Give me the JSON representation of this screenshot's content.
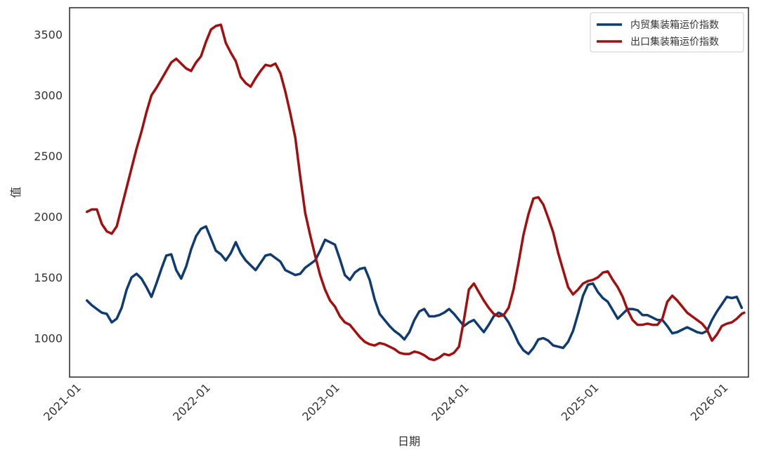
{
  "chart_data": {
    "type": "line",
    "title": "",
    "xlabel": "日期",
    "ylabel": "值",
    "x_ticks": [
      "2021-01",
      "2022-01",
      "2023-01",
      "2024-01",
      "2025-01",
      "2026-01"
    ],
    "y_ticks": [
      "1000",
      "1500",
      "2000",
      "2500",
      "3000",
      "3500"
    ],
    "ylim": [
      680,
      3720
    ],
    "xlim": [
      "2020-12-18",
      "2026-03-18"
    ],
    "legend_position": "top-right",
    "grid": false,
    "series": [
      {
        "name": "内贸集装箱运价指数",
        "color": "#0d3b72",
        "points": [
          [
            "2021-02-05",
            1310
          ],
          [
            "2021-02-19",
            1270
          ],
          [
            "2021-03-05",
            1240
          ],
          [
            "2021-03-19",
            1210
          ],
          [
            "2021-04-02",
            1200
          ],
          [
            "2021-04-16",
            1130
          ],
          [
            "2021-04-30",
            1160
          ],
          [
            "2021-05-14",
            1250
          ],
          [
            "2021-05-28",
            1400
          ],
          [
            "2021-06-11",
            1500
          ],
          [
            "2021-06-25",
            1530
          ],
          [
            "2021-07-09",
            1490
          ],
          [
            "2021-07-23",
            1420
          ],
          [
            "2021-08-06",
            1340
          ],
          [
            "2021-08-20",
            1450
          ],
          [
            "2021-09-03",
            1570
          ],
          [
            "2021-09-17",
            1680
          ],
          [
            "2021-10-01",
            1690
          ],
          [
            "2021-10-15",
            1560
          ],
          [
            "2021-10-29",
            1490
          ],
          [
            "2021-11-12",
            1590
          ],
          [
            "2021-11-26",
            1730
          ],
          [
            "2021-12-10",
            1840
          ],
          [
            "2021-12-24",
            1900
          ],
          [
            "2022-01-07",
            1920
          ],
          [
            "2022-01-21",
            1820
          ],
          [
            "2022-02-04",
            1720
          ],
          [
            "2022-02-18",
            1690
          ],
          [
            "2022-03-04",
            1640
          ],
          [
            "2022-03-18",
            1700
          ],
          [
            "2022-04-01",
            1790
          ],
          [
            "2022-04-15",
            1700
          ],
          [
            "2022-04-29",
            1640
          ],
          [
            "2022-05-13",
            1600
          ],
          [
            "2022-05-27",
            1560
          ],
          [
            "2022-06-10",
            1620
          ],
          [
            "2022-06-24",
            1680
          ],
          [
            "2022-07-08",
            1690
          ],
          [
            "2022-07-22",
            1660
          ],
          [
            "2022-08-05",
            1630
          ],
          [
            "2022-08-19",
            1560
          ],
          [
            "2022-09-02",
            1540
          ],
          [
            "2022-09-16",
            1520
          ],
          [
            "2022-09-30",
            1530
          ],
          [
            "2022-10-14",
            1580
          ],
          [
            "2022-10-28",
            1610
          ],
          [
            "2022-11-11",
            1640
          ],
          [
            "2022-11-25",
            1720
          ],
          [
            "2022-12-09",
            1810
          ],
          [
            "2022-12-23",
            1790
          ],
          [
            "2023-01-06",
            1770
          ],
          [
            "2023-01-20",
            1650
          ],
          [
            "2023-02-03",
            1520
          ],
          [
            "2023-02-17",
            1480
          ],
          [
            "2023-03-03",
            1540
          ],
          [
            "2023-03-17",
            1570
          ],
          [
            "2023-03-31",
            1580
          ],
          [
            "2023-04-14",
            1480
          ],
          [
            "2023-04-28",
            1320
          ],
          [
            "2023-05-12",
            1200
          ],
          [
            "2023-05-26",
            1150
          ],
          [
            "2023-06-09",
            1100
          ],
          [
            "2023-06-23",
            1060
          ],
          [
            "2023-07-07",
            1030
          ],
          [
            "2023-07-21",
            990
          ],
          [
            "2023-08-04",
            1050
          ],
          [
            "2023-08-18",
            1150
          ],
          [
            "2023-09-01",
            1220
          ],
          [
            "2023-09-15",
            1240
          ],
          [
            "2023-09-29",
            1180
          ],
          [
            "2023-10-13",
            1180
          ],
          [
            "2023-10-27",
            1190
          ],
          [
            "2023-11-10",
            1210
          ],
          [
            "2023-11-24",
            1240
          ],
          [
            "2023-12-08",
            1200
          ],
          [
            "2023-12-22",
            1150
          ],
          [
            "2024-01-05",
            1100
          ],
          [
            "2024-01-19",
            1130
          ],
          [
            "2024-02-02",
            1150
          ],
          [
            "2024-02-16",
            1100
          ],
          [
            "2024-03-01",
            1050
          ],
          [
            "2024-03-15",
            1110
          ],
          [
            "2024-03-29",
            1180
          ],
          [
            "2024-04-12",
            1210
          ],
          [
            "2024-04-26",
            1190
          ],
          [
            "2024-05-10",
            1130
          ],
          [
            "2024-05-24",
            1050
          ],
          [
            "2024-06-07",
            960
          ],
          [
            "2024-06-21",
            900
          ],
          [
            "2024-07-05",
            870
          ],
          [
            "2024-07-19",
            920
          ],
          [
            "2024-08-02",
            990
          ],
          [
            "2024-08-16",
            1000
          ],
          [
            "2024-08-30",
            980
          ],
          [
            "2024-09-13",
            940
          ],
          [
            "2024-09-27",
            930
          ],
          [
            "2024-10-11",
            920
          ],
          [
            "2024-10-25",
            970
          ],
          [
            "2024-11-08",
            1060
          ],
          [
            "2024-11-22",
            1200
          ],
          [
            "2024-12-06",
            1350
          ],
          [
            "2024-12-20",
            1440
          ],
          [
            "2025-01-03",
            1450
          ],
          [
            "2025-01-17",
            1380
          ],
          [
            "2025-01-31",
            1330
          ],
          [
            "2025-02-14",
            1300
          ],
          [
            "2025-02-28",
            1230
          ],
          [
            "2025-03-14",
            1160
          ],
          [
            "2025-03-28",
            1200
          ],
          [
            "2025-04-11",
            1240
          ],
          [
            "2025-04-25",
            1240
          ],
          [
            "2025-05-09",
            1230
          ],
          [
            "2025-05-23",
            1190
          ],
          [
            "2025-06-06",
            1190
          ],
          [
            "2025-06-20",
            1170
          ],
          [
            "2025-07-04",
            1150
          ],
          [
            "2025-07-18",
            1150
          ],
          [
            "2025-08-01",
            1100
          ],
          [
            "2025-08-15",
            1040
          ],
          [
            "2025-08-29",
            1050
          ],
          [
            "2025-09-12",
            1070
          ],
          [
            "2025-09-26",
            1090
          ],
          [
            "2025-10-10",
            1070
          ],
          [
            "2025-10-24",
            1050
          ],
          [
            "2025-11-07",
            1040
          ],
          [
            "2025-11-21",
            1060
          ],
          [
            "2025-12-05",
            1150
          ],
          [
            "2025-12-19",
            1220
          ],
          [
            "2026-01-02",
            1280
          ],
          [
            "2026-01-16",
            1340
          ],
          [
            "2026-01-30",
            1330
          ],
          [
            "2026-02-13",
            1340
          ],
          [
            "2026-02-27",
            1250
          ]
        ]
      },
      {
        "name": "出口集装箱运价指数",
        "color": "#a30f0f",
        "points": [
          [
            "2021-02-05",
            2040
          ],
          [
            "2021-02-19",
            2060
          ],
          [
            "2021-03-05",
            2060
          ],
          [
            "2021-03-19",
            1940
          ],
          [
            "2021-04-02",
            1880
          ],
          [
            "2021-04-16",
            1860
          ],
          [
            "2021-04-30",
            1920
          ],
          [
            "2021-05-14",
            2080
          ],
          [
            "2021-05-28",
            2240
          ],
          [
            "2021-06-11",
            2400
          ],
          [
            "2021-06-25",
            2560
          ],
          [
            "2021-07-09",
            2700
          ],
          [
            "2021-07-23",
            2860
          ],
          [
            "2021-08-06",
            3000
          ],
          [
            "2021-08-20",
            3060
          ],
          [
            "2021-09-03",
            3130
          ],
          [
            "2021-09-17",
            3200
          ],
          [
            "2021-10-01",
            3270
          ],
          [
            "2021-10-15",
            3300
          ],
          [
            "2021-10-29",
            3260
          ],
          [
            "2021-11-12",
            3220
          ],
          [
            "2021-11-26",
            3200
          ],
          [
            "2021-12-10",
            3270
          ],
          [
            "2021-12-24",
            3320
          ],
          [
            "2022-01-07",
            3440
          ],
          [
            "2022-01-21",
            3540
          ],
          [
            "2022-02-04",
            3570
          ],
          [
            "2022-02-18",
            3580
          ],
          [
            "2022-03-04",
            3430
          ],
          [
            "2022-03-18",
            3350
          ],
          [
            "2022-04-01",
            3280
          ],
          [
            "2022-04-15",
            3150
          ],
          [
            "2022-04-29",
            3100
          ],
          [
            "2022-05-13",
            3070
          ],
          [
            "2022-05-27",
            3140
          ],
          [
            "2022-06-10",
            3200
          ],
          [
            "2022-06-24",
            3250
          ],
          [
            "2022-07-08",
            3240
          ],
          [
            "2022-07-22",
            3260
          ],
          [
            "2022-08-05",
            3180
          ],
          [
            "2022-08-19",
            3030
          ],
          [
            "2022-09-02",
            2850
          ],
          [
            "2022-09-16",
            2650
          ],
          [
            "2022-09-30",
            2330
          ],
          [
            "2022-10-14",
            2030
          ],
          [
            "2022-10-28",
            1850
          ],
          [
            "2022-11-11",
            1680
          ],
          [
            "2022-11-25",
            1520
          ],
          [
            "2022-12-09",
            1400
          ],
          [
            "2022-12-23",
            1310
          ],
          [
            "2023-01-06",
            1260
          ],
          [
            "2023-01-20",
            1180
          ],
          [
            "2023-02-03",
            1130
          ],
          [
            "2023-02-17",
            1110
          ],
          [
            "2023-03-03",
            1060
          ],
          [
            "2023-03-17",
            1010
          ],
          [
            "2023-03-31",
            970
          ],
          [
            "2023-04-14",
            950
          ],
          [
            "2023-04-28",
            940
          ],
          [
            "2023-05-12",
            960
          ],
          [
            "2023-05-26",
            950
          ],
          [
            "2023-06-09",
            930
          ],
          [
            "2023-06-23",
            910
          ],
          [
            "2023-07-07",
            880
          ],
          [
            "2023-07-21",
            870
          ],
          [
            "2023-08-04",
            870
          ],
          [
            "2023-08-18",
            890
          ],
          [
            "2023-09-01",
            880
          ],
          [
            "2023-09-15",
            860
          ],
          [
            "2023-09-29",
            830
          ],
          [
            "2023-10-13",
            820
          ],
          [
            "2023-10-27",
            840
          ],
          [
            "2023-11-10",
            870
          ],
          [
            "2023-11-24",
            860
          ],
          [
            "2023-12-08",
            880
          ],
          [
            "2023-12-22",
            930
          ],
          [
            "2024-01-05",
            1150
          ],
          [
            "2024-01-19",
            1400
          ],
          [
            "2024-02-02",
            1450
          ],
          [
            "2024-02-16",
            1380
          ],
          [
            "2024-03-01",
            1310
          ],
          [
            "2024-03-15",
            1250
          ],
          [
            "2024-03-29",
            1200
          ],
          [
            "2024-04-12",
            1180
          ],
          [
            "2024-04-26",
            1190
          ],
          [
            "2024-05-10",
            1250
          ],
          [
            "2024-05-24",
            1400
          ],
          [
            "2024-06-07",
            1620
          ],
          [
            "2024-06-21",
            1850
          ],
          [
            "2024-07-05",
            2020
          ],
          [
            "2024-07-19",
            2150
          ],
          [
            "2024-08-02",
            2160
          ],
          [
            "2024-08-16",
            2100
          ],
          [
            "2024-08-30",
            1990
          ],
          [
            "2024-09-13",
            1870
          ],
          [
            "2024-09-27",
            1700
          ],
          [
            "2024-10-11",
            1560
          ],
          [
            "2024-10-25",
            1420
          ],
          [
            "2024-11-08",
            1360
          ],
          [
            "2024-11-22",
            1400
          ],
          [
            "2024-12-06",
            1450
          ],
          [
            "2024-12-20",
            1470
          ],
          [
            "2025-01-03",
            1480
          ],
          [
            "2025-01-17",
            1500
          ],
          [
            "2025-01-31",
            1540
          ],
          [
            "2025-02-14",
            1550
          ],
          [
            "2025-02-28",
            1480
          ],
          [
            "2025-03-14",
            1420
          ],
          [
            "2025-03-28",
            1340
          ],
          [
            "2025-04-11",
            1230
          ],
          [
            "2025-04-25",
            1150
          ],
          [
            "2025-05-09",
            1110
          ],
          [
            "2025-05-23",
            1110
          ],
          [
            "2025-06-06",
            1120
          ],
          [
            "2025-06-20",
            1110
          ],
          [
            "2025-07-04",
            1110
          ],
          [
            "2025-07-18",
            1160
          ],
          [
            "2025-08-01",
            1300
          ],
          [
            "2025-08-15",
            1350
          ],
          [
            "2025-08-29",
            1310
          ],
          [
            "2025-09-12",
            1260
          ],
          [
            "2025-09-26",
            1210
          ],
          [
            "2025-10-10",
            1180
          ],
          [
            "2025-10-24",
            1150
          ],
          [
            "2025-11-07",
            1120
          ],
          [
            "2025-11-21",
            1070
          ],
          [
            "2025-12-05",
            980
          ],
          [
            "2025-12-19",
            1030
          ],
          [
            "2026-01-02",
            1100
          ],
          [
            "2026-01-16",
            1120
          ],
          [
            "2026-01-30",
            1130
          ],
          [
            "2026-02-13",
            1160
          ],
          [
            "2026-02-27",
            1200
          ],
          [
            "2026-03-06",
            1210
          ]
        ]
      }
    ]
  }
}
